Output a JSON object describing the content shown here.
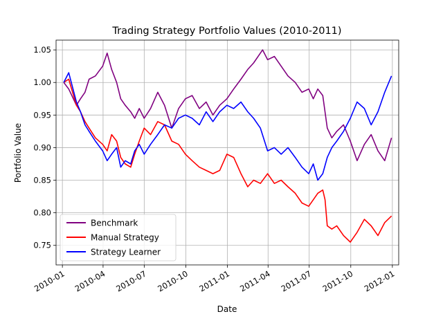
{
  "chart_data": {
    "type": "line",
    "title": "Trading Strategy Portfolio Values (2010-2011)",
    "xlabel": "Date",
    "ylabel": "Portfolio Value",
    "x_range": [
      "2009-12-18",
      "2012-01-15"
    ],
    "ylim": [
      0.72,
      1.065
    ],
    "grid": true,
    "legend_position": "lower-left",
    "x_ticks": [
      "2010-01",
      "2010-04",
      "2010-07",
      "2010-10",
      "2011-01",
      "2011-04",
      "2011-07",
      "2011-10",
      "2012-01"
    ],
    "y_ticks": [
      "0.75",
      "0.80",
      "0.85",
      "0.90",
      "0.95",
      "1.00",
      "1.05"
    ],
    "series": [
      {
        "name": "Benchmark",
        "color": "#800080",
        "x": [
          "2010-01-04",
          "2010-01-15",
          "2010-02-01",
          "2010-02-10",
          "2010-02-20",
          "2010-03-01",
          "2010-03-15",
          "2010-03-31",
          "2010-04-10",
          "2010-04-20",
          "2010-05-01",
          "2010-05-10",
          "2010-05-20",
          "2010-06-01",
          "2010-06-10",
          "2010-06-20",
          "2010-07-01",
          "2010-07-15",
          "2010-07-31",
          "2010-08-15",
          "2010-08-31",
          "2010-09-15",
          "2010-09-30",
          "2010-10-15",
          "2010-10-31",
          "2010-11-15",
          "2010-11-30",
          "2010-12-15",
          "2010-12-31",
          "2011-01-15",
          "2011-01-31",
          "2011-02-15",
          "2011-02-28",
          "2011-03-10",
          "2011-03-20",
          "2011-03-31",
          "2011-04-15",
          "2011-04-30",
          "2011-05-15",
          "2011-05-31",
          "2011-06-15",
          "2011-06-30",
          "2011-07-10",
          "2011-07-20",
          "2011-07-31",
          "2011-08-10",
          "2011-08-20",
          "2011-08-31",
          "2011-09-15",
          "2011-09-30",
          "2011-10-15",
          "2011-10-31",
          "2011-11-15",
          "2011-11-30",
          "2011-12-15",
          "2011-12-30"
        ],
        "y": [
          1.0,
          0.99,
          0.965,
          0.975,
          0.985,
          1.005,
          1.01,
          1.025,
          1.045,
          1.02,
          1.0,
          0.975,
          0.965,
          0.955,
          0.945,
          0.96,
          0.945,
          0.96,
          0.985,
          0.965,
          0.93,
          0.96,
          0.975,
          0.98,
          0.96,
          0.97,
          0.95,
          0.965,
          0.975,
          0.99,
          1.005,
          1.02,
          1.03,
          1.04,
          1.05,
          1.035,
          1.04,
          1.025,
          1.01,
          1.0,
          0.985,
          0.99,
          0.975,
          0.99,
          0.98,
          0.93,
          0.915,
          0.925,
          0.935,
          0.91,
          0.88,
          0.905,
          0.92,
          0.895,
          0.88,
          0.915
        ]
      },
      {
        "name": "Manual Strategy",
        "color": "#ff0000",
        "x": [
          "2010-01-04",
          "2010-01-15",
          "2010-02-01",
          "2010-02-10",
          "2010-02-20",
          "2010-03-01",
          "2010-03-15",
          "2010-03-31",
          "2010-04-10",
          "2010-04-20",
          "2010-05-01",
          "2010-05-10",
          "2010-05-20",
          "2010-06-01",
          "2010-06-10",
          "2010-06-20",
          "2010-07-01",
          "2010-07-15",
          "2010-07-31",
          "2010-08-15",
          "2010-08-31",
          "2010-09-15",
          "2010-09-30",
          "2010-10-15",
          "2010-10-31",
          "2010-11-15",
          "2010-11-30",
          "2010-12-15",
          "2010-12-31",
          "2011-01-15",
          "2011-01-31",
          "2011-02-15",
          "2011-02-28",
          "2011-03-15",
          "2011-03-31",
          "2011-04-15",
          "2011-04-30",
          "2011-05-15",
          "2011-05-31",
          "2011-06-15",
          "2011-06-30",
          "2011-07-10",
          "2011-07-20",
          "2011-07-31",
          "2011-08-05",
          "2011-08-10",
          "2011-08-20",
          "2011-08-31",
          "2011-09-15",
          "2011-09-30",
          "2011-10-15",
          "2011-10-31",
          "2011-11-15",
          "2011-11-30",
          "2011-12-15",
          "2011-12-30"
        ],
        "y": [
          1.0,
          1.005,
          0.965,
          0.955,
          0.94,
          0.93,
          0.915,
          0.905,
          0.895,
          0.92,
          0.91,
          0.885,
          0.875,
          0.87,
          0.89,
          0.91,
          0.93,
          0.92,
          0.94,
          0.935,
          0.91,
          0.905,
          0.89,
          0.88,
          0.87,
          0.865,
          0.86,
          0.865,
          0.89,
          0.885,
          0.86,
          0.84,
          0.85,
          0.845,
          0.86,
          0.845,
          0.85,
          0.84,
          0.83,
          0.815,
          0.81,
          0.82,
          0.83,
          0.835,
          0.82,
          0.78,
          0.775,
          0.78,
          0.765,
          0.755,
          0.77,
          0.79,
          0.78,
          0.765,
          0.785,
          0.795
        ]
      },
      {
        "name": "Strategy Learner",
        "color": "#0000ff",
        "x": [
          "2010-01-04",
          "2010-01-15",
          "2010-02-01",
          "2010-02-10",
          "2010-02-20",
          "2010-03-01",
          "2010-03-15",
          "2010-03-31",
          "2010-04-10",
          "2010-04-20",
          "2010-05-01",
          "2010-05-10",
          "2010-05-20",
          "2010-06-01",
          "2010-06-10",
          "2010-06-20",
          "2010-07-01",
          "2010-07-15",
          "2010-07-31",
          "2010-08-15",
          "2010-08-31",
          "2010-09-15",
          "2010-09-30",
          "2010-10-15",
          "2010-10-31",
          "2010-11-15",
          "2010-11-30",
          "2010-12-15",
          "2010-12-31",
          "2011-01-15",
          "2011-01-31",
          "2011-02-15",
          "2011-02-28",
          "2011-03-15",
          "2011-03-31",
          "2011-04-15",
          "2011-04-30",
          "2011-05-15",
          "2011-05-31",
          "2011-06-15",
          "2011-06-30",
          "2011-07-10",
          "2011-07-20",
          "2011-07-31",
          "2011-08-10",
          "2011-08-20",
          "2011-08-31",
          "2011-09-15",
          "2011-09-30",
          "2011-10-15",
          "2011-10-31",
          "2011-11-15",
          "2011-11-30",
          "2011-12-15",
          "2011-12-30"
        ],
        "y": [
          1.0,
          1.015,
          0.97,
          0.955,
          0.935,
          0.925,
          0.91,
          0.895,
          0.88,
          0.89,
          0.9,
          0.87,
          0.88,
          0.875,
          0.895,
          0.905,
          0.89,
          0.905,
          0.92,
          0.935,
          0.93,
          0.945,
          0.95,
          0.945,
          0.935,
          0.955,
          0.94,
          0.955,
          0.965,
          0.96,
          0.97,
          0.955,
          0.945,
          0.93,
          0.895,
          0.9,
          0.89,
          0.9,
          0.885,
          0.87,
          0.86,
          0.875,
          0.85,
          0.86,
          0.885,
          0.9,
          0.91,
          0.925,
          0.945,
          0.97,
          0.96,
          0.935,
          0.955,
          0.985,
          1.01
        ]
      }
    ]
  }
}
